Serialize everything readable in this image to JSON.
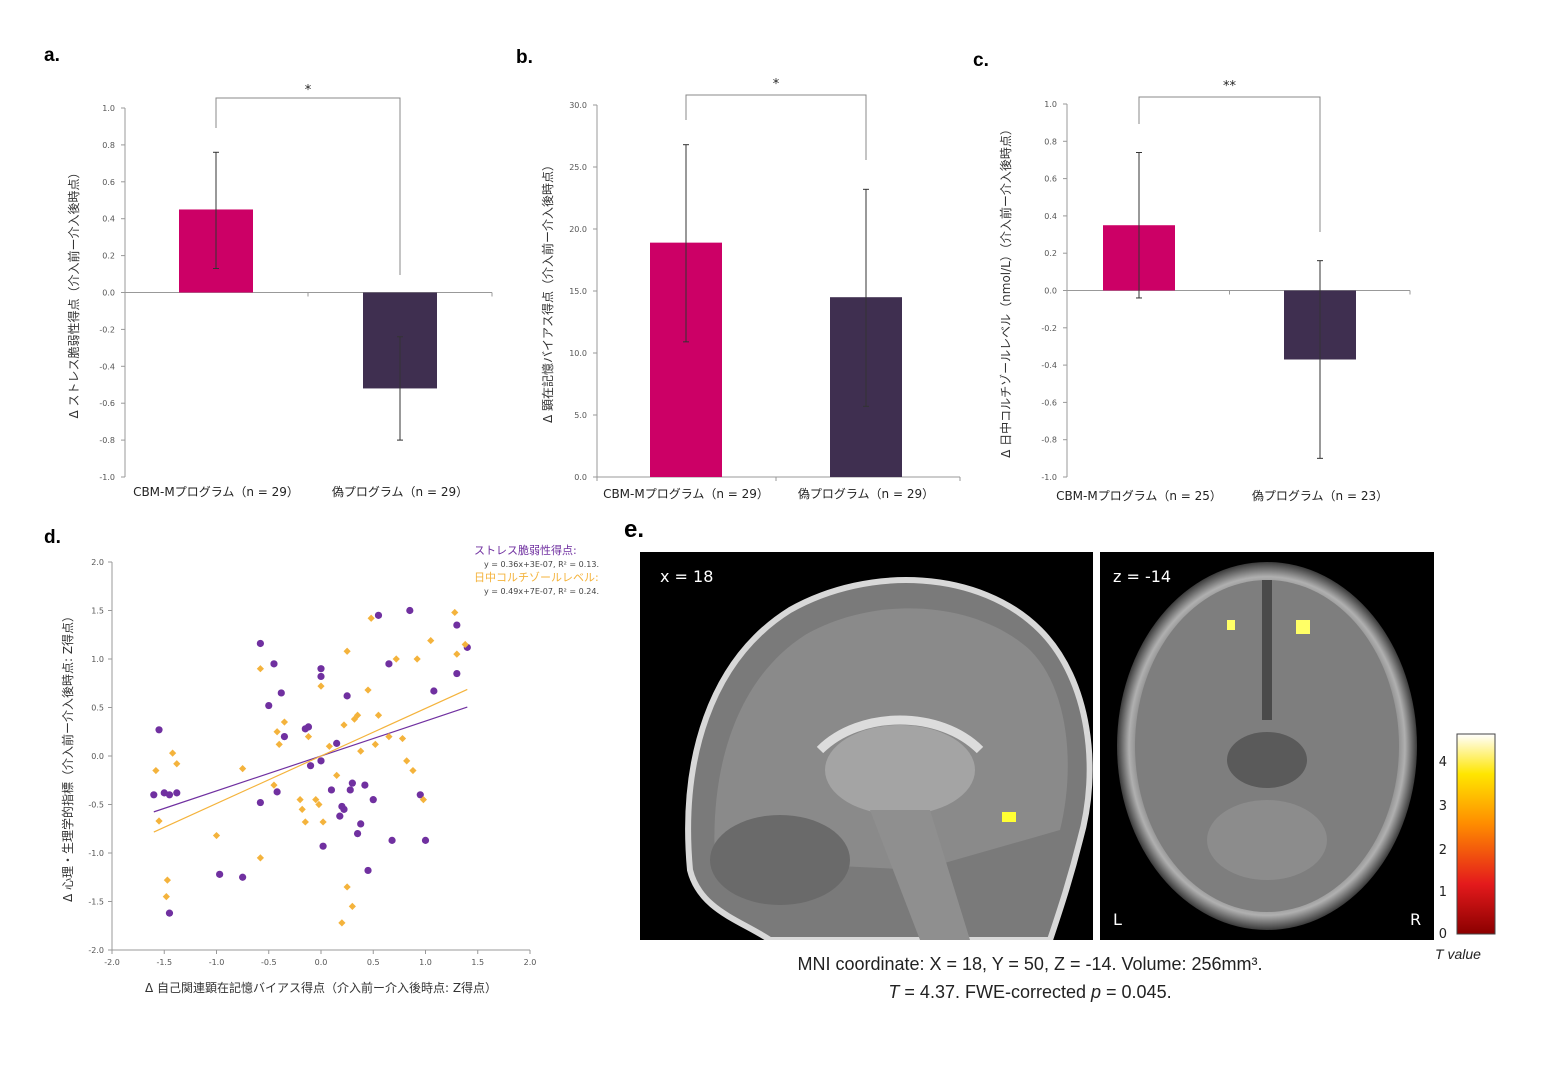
{
  "colors": {
    "cbm": "#CC0066",
    "sham": "#3F2F50",
    "purple": "#7030A0",
    "orange": "#F4B33C",
    "axis": "#999999"
  },
  "panels": {
    "a": {
      "letter": "a."
    },
    "b": {
      "letter": "b."
    },
    "c": {
      "letter": "c."
    },
    "d": {
      "letter": "d."
    },
    "e": {
      "letter": "e."
    }
  },
  "chart_data": [
    {
      "id": "a",
      "type": "bar",
      "ylabel": "Δ ストレス脆弱性得点（介入前ー介入後時点）",
      "ylim": [
        -1.0,
        1.0
      ],
      "yticks": [
        "1.0",
        "0.8",
        "0.6",
        "0.4",
        "0.2",
        "0.0",
        "-0.2",
        "-0.4",
        "-0.6",
        "-0.8",
        "-1.0"
      ],
      "categories": [
        "CBM-Mプログラム（n = 29）",
        "偽プログラム（n = 29）"
      ],
      "values": [
        0.45,
        -0.52
      ],
      "err_low": [
        0.13,
        -0.8
      ],
      "err_high": [
        0.76,
        -0.24
      ],
      "significance": "*"
    },
    {
      "id": "b",
      "type": "bar",
      "ylabel": "Δ 顕在記憶バイアス得点（介入前ー介入後時点）",
      "ylim": [
        0,
        30
      ],
      "yticks": [
        "30.0",
        "25.0",
        "20.0",
        "15.0",
        "10.0",
        "5.0",
        "0.0"
      ],
      "categories": [
        "CBM-Mプログラム（n = 29）",
        "偽プログラム（n = 29）"
      ],
      "values": [
        18.9,
        14.5
      ],
      "err_low": [
        10.9,
        5.7
      ],
      "err_high": [
        26.8,
        23.2
      ],
      "significance": "*"
    },
    {
      "id": "c",
      "type": "bar",
      "ylabel": "Δ 日中コルチゾールレベル（nmol/L）（介入前ー介入後時点）",
      "ylim": [
        -1.0,
        1.0
      ],
      "yticks": [
        "1.0",
        "0.8",
        "0.6",
        "0.4",
        "0.2",
        "0.0",
        "-0.2",
        "-0.4",
        "-0.6",
        "-0.8",
        "-1.0"
      ],
      "categories": [
        "CBM-Mプログラム（n = 25）",
        "偽プログラム（n = 23）"
      ],
      "values": [
        0.35,
        -0.37
      ],
      "err_low": [
        -0.04,
        -0.9
      ],
      "err_high": [
        0.74,
        0.16
      ],
      "significance": "**"
    },
    {
      "id": "d",
      "type": "scatter",
      "xlabel": "Δ 自己関連顕在記憶バイアス得点（介入前ー介入後時点: Z得点）",
      "ylabel": "Δ 心理・生理学的指標（介入前ー介入後時点: Z得点）",
      "xlim": [
        -2.0,
        2.0
      ],
      "ylim": [
        -2.0,
        2.0
      ],
      "xticks": [
        "-2.0",
        "-1.5",
        "-1.0",
        "-0.5",
        "0.0",
        "0.5",
        "1.0",
        "1.5",
        "2.0"
      ],
      "yticks": [
        "2.0",
        "1.5",
        "1.0",
        "0.5",
        "0.0",
        "-0.5",
        "-1.0",
        "-1.5",
        "-2.0"
      ],
      "legend": {
        "stress_label": "ストレス脆弱性得点:",
        "stress_eq": "y = 0.36x+3E-07, R² = 0.13.",
        "cortisol_label": "日中コルチゾールレベル:",
        "cortisol_eq": "y = 0.49x+7E-07, R² = 0.24."
      },
      "series": [
        {
          "name": "ストレス脆弱性得点",
          "slope": 0.36,
          "intercept": 0.0,
          "points": [
            [
              -1.6,
              -0.4
            ],
            [
              -1.55,
              0.27
            ],
            [
              -1.5,
              -0.38
            ],
            [
              -1.45,
              -0.4
            ],
            [
              -1.45,
              -1.62
            ],
            [
              -1.38,
              -0.38
            ],
            [
              -0.97,
              -1.22
            ],
            [
              -0.75,
              -1.25
            ],
            [
              -0.58,
              1.16
            ],
            [
              -0.58,
              -0.48
            ],
            [
              -0.5,
              0.52
            ],
            [
              -0.45,
              0.95
            ],
            [
              -0.42,
              -0.37
            ],
            [
              -0.38,
              0.65
            ],
            [
              -0.35,
              0.2
            ],
            [
              -0.15,
              0.28
            ],
            [
              -0.12,
              0.3
            ],
            [
              -0.1,
              -0.1
            ],
            [
              0.0,
              0.9
            ],
            [
              0.0,
              0.82
            ],
            [
              0.0,
              -0.05
            ],
            [
              0.02,
              -0.93
            ],
            [
              0.1,
              -0.35
            ],
            [
              0.15,
              0.13
            ],
            [
              0.18,
              -0.62
            ],
            [
              0.2,
              -0.52
            ],
            [
              0.22,
              -0.55
            ],
            [
              0.25,
              0.62
            ],
            [
              0.28,
              -0.35
            ],
            [
              0.3,
              -0.28
            ],
            [
              0.35,
              -0.8
            ],
            [
              0.38,
              -0.7
            ],
            [
              0.42,
              -0.3
            ],
            [
              0.45,
              -1.18
            ],
            [
              0.5,
              -0.45
            ],
            [
              0.55,
              1.45
            ],
            [
              0.65,
              0.95
            ],
            [
              0.68,
              -0.87
            ],
            [
              0.85,
              1.5
            ],
            [
              0.95,
              -0.4
            ],
            [
              1.0,
              -0.87
            ],
            [
              1.08,
              0.67
            ],
            [
              1.3,
              0.85
            ],
            [
              1.3,
              1.35
            ],
            [
              1.4,
              1.12
            ]
          ]
        },
        {
          "name": "日中コルチゾールレベル",
          "slope": 0.49,
          "intercept": 0.0,
          "points": [
            [
              -1.58,
              -0.15
            ],
            [
              -1.55,
              -0.67
            ],
            [
              -1.48,
              -1.45
            ],
            [
              -1.47,
              -1.28
            ],
            [
              -1.42,
              0.03
            ],
            [
              -1.38,
              -0.08
            ],
            [
              -1.0,
              -0.82
            ],
            [
              -0.75,
              -0.13
            ],
            [
              -0.58,
              0.9
            ],
            [
              -0.58,
              -1.05
            ],
            [
              -0.45,
              -0.3
            ],
            [
              -0.42,
              0.25
            ],
            [
              -0.4,
              0.12
            ],
            [
              -0.35,
              0.35
            ],
            [
              -0.2,
              -0.45
            ],
            [
              -0.18,
              -0.55
            ],
            [
              -0.15,
              -0.68
            ],
            [
              -0.12,
              0.2
            ],
            [
              -0.05,
              -0.45
            ],
            [
              -0.02,
              -0.5
            ],
            [
              0.0,
              0.72
            ],
            [
              0.02,
              -0.68
            ],
            [
              0.08,
              0.1
            ],
            [
              0.15,
              -0.2
            ],
            [
              0.2,
              -1.72
            ],
            [
              0.22,
              0.32
            ],
            [
              0.25,
              1.08
            ],
            [
              0.25,
              -1.35
            ],
            [
              0.3,
              -1.55
            ],
            [
              0.32,
              0.38
            ],
            [
              0.35,
              0.42
            ],
            [
              0.38,
              0.05
            ],
            [
              0.45,
              0.68
            ],
            [
              0.48,
              1.42
            ],
            [
              0.52,
              0.12
            ],
            [
              0.55,
              0.42
            ],
            [
              0.65,
              0.2
            ],
            [
              0.72,
              1.0
            ],
            [
              0.78,
              0.18
            ],
            [
              0.82,
              -0.05
            ],
            [
              0.88,
              -0.15
            ],
            [
              0.92,
              1.0
            ],
            [
              0.98,
              -0.45
            ],
            [
              1.05,
              1.19
            ],
            [
              1.28,
              1.48
            ],
            [
              1.3,
              1.05
            ],
            [
              1.38,
              1.15
            ]
          ]
        }
      ]
    }
  ],
  "mri": {
    "sagittal_label": "x = 18",
    "axial_label": "z = -14",
    "left_label": "L",
    "right_label": "R",
    "colorbar_ticks": [
      "4",
      "3",
      "2",
      "1",
      "0"
    ],
    "colorbar_title": "T value",
    "caption_line1": "MNI coordinate: X = 18, Y = 50, Z = -14. Volume: 256mm³.",
    "caption_line2_t": "T",
    "caption_line2_a": " = 4.37. FWE-corrected ",
    "caption_line2_p": "p",
    "caption_line2_b": " = 0.045."
  }
}
